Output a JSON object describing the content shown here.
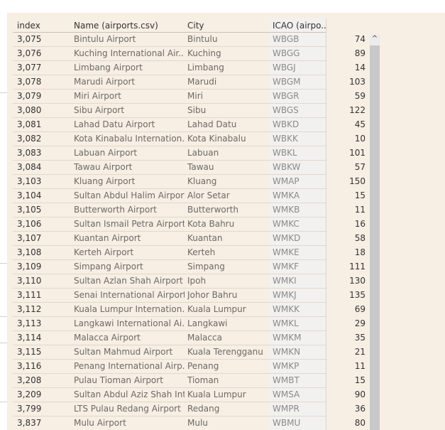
{
  "columns": {
    "index": "index",
    "name": "Name (airports.csv)",
    "city": "City",
    "icao": "ICAO (airpo.."
  },
  "rows": [
    {
      "index": "3,075",
      "name": "Bintulu Airport",
      "city": "Bintulu",
      "icao": "WBGB",
      "value": "74"
    },
    {
      "index": "3,076",
      "name": "Kuching International Air..",
      "city": "Kuching",
      "icao": "WBGG",
      "value": "89"
    },
    {
      "index": "3,077",
      "name": "Limbang Airport",
      "city": "Limbang",
      "icao": "WBGJ",
      "value": "14"
    },
    {
      "index": "3,078",
      "name": "Marudi Airport",
      "city": "Marudi",
      "icao": "WBGM",
      "value": "103"
    },
    {
      "index": "3,079",
      "name": "Miri Airport",
      "city": "Miri",
      "icao": "WBGR",
      "value": "59"
    },
    {
      "index": "3,080",
      "name": "Sibu Airport",
      "city": "Sibu",
      "icao": "WBGS",
      "value": "122"
    },
    {
      "index": "3,081",
      "name": "Lahad Datu Airport",
      "city": "Lahad Datu",
      "icao": "WBKD",
      "value": "45"
    },
    {
      "index": "3,082",
      "name": "Kota Kinabalu Internation..",
      "city": "Kota Kinabalu",
      "icao": "WBKK",
      "value": "10"
    },
    {
      "index": "3,083",
      "name": "Labuan Airport",
      "city": "Labuan",
      "icao": "WBKL",
      "value": "101"
    },
    {
      "index": "3,084",
      "name": "Tawau Airport",
      "city": "Tawau",
      "icao": "WBKW",
      "value": "57"
    },
    {
      "index": "3,103",
      "name": "Kluang Airport",
      "city": "Kluang",
      "icao": "WMAP",
      "value": "150"
    },
    {
      "index": "3,104",
      "name": "Sultan Abdul Halim Airport",
      "city": "Alor Setar",
      "icao": "WMKA",
      "value": "15"
    },
    {
      "index": "3,105",
      "name": "Butterworth Airport",
      "city": "Butterworth",
      "icao": "WMKB",
      "value": "11"
    },
    {
      "index": "3,106",
      "name": "Sultan Ismail Petra Airport",
      "city": "Kota Bahru",
      "icao": "WMKC",
      "value": "16"
    },
    {
      "index": "3,107",
      "name": "Kuantan Airport",
      "city": "Kuantan",
      "icao": "WMKD",
      "value": "58"
    },
    {
      "index": "3,108",
      "name": "Kerteh Airport",
      "city": "Kerteh",
      "icao": "WMKE",
      "value": "18"
    },
    {
      "index": "3,109",
      "name": "Simpang Airport",
      "city": "Simpang",
      "icao": "WMKF",
      "value": "111"
    },
    {
      "index": "3,110",
      "name": "Sultan Azlan Shah Airport",
      "city": "Ipoh",
      "icao": "WMKI",
      "value": "130"
    },
    {
      "index": "3,111",
      "name": "Senai International Airport",
      "city": "Johor Bahru",
      "icao": "WMKJ",
      "value": "135"
    },
    {
      "index": "3,112",
      "name": "Kuala Lumpur Internation..",
      "city": "Kuala Lumpur",
      "icao": "WMKK",
      "value": "69"
    },
    {
      "index": "3,113",
      "name": "Langkawi International Ai..",
      "city": "Langkawi",
      "icao": "WMKL",
      "value": "29"
    },
    {
      "index": "3,114",
      "name": "Malacca Airport",
      "city": "Malacca",
      "icao": "WMKM",
      "value": "35"
    },
    {
      "index": "3,115",
      "name": "Sultan Mahmud Airport",
      "city": "Kuala Terengganu",
      "icao": "WMKN",
      "value": "21"
    },
    {
      "index": "3,116",
      "name": "Penang International Airp..",
      "city": "Penang",
      "icao": "WMKP",
      "value": "11"
    },
    {
      "index": "3,208",
      "name": "Pulau Tioman Airport",
      "city": "Tioman",
      "icao": "WMBT",
      "value": "15"
    },
    {
      "index": "3,209",
      "name": "Sultan Abdul Aziz Shah Int..",
      "city": "Kuala Lumpur",
      "icao": "WMSA",
      "value": "90"
    },
    {
      "index": "3,799",
      "name": "LTS Pulau Redang Airport",
      "city": "Redang",
      "icao": "WMPR",
      "value": "36"
    },
    {
      "index": "3,837",
      "name": "Mulu Airport",
      "city": "Mulu",
      "icao": "WBMU",
      "value": "80"
    }
  ],
  "scrollbar": {
    "up_icon": "chevron-up-icon",
    "up_glyph": "^"
  },
  "colors": {
    "sheet_background": "#f7eee4",
    "header_text": "#333333",
    "body_text": "#6c6a66",
    "icao_text": "#8a8a8a"
  }
}
